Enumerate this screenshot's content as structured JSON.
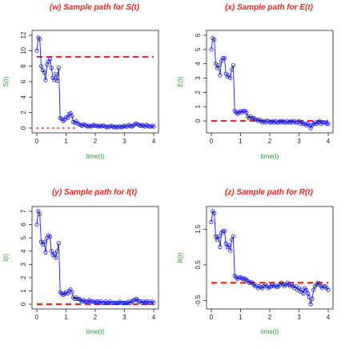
{
  "colors": {
    "title": "#e8281e",
    "axis_label": "#2a9a3a",
    "path_line": "#1a1ae6",
    "markers": "#1a1ae6",
    "reference_dashed": "#e8281e",
    "reference_dotted": "#e8281e"
  },
  "chart_data": [
    {
      "type": "line",
      "title": "(w) Sample path for S(t)",
      "xlabel": "time(t)",
      "ylabel": "S(t)",
      "xlim": [
        0,
        4
      ],
      "ylim": [
        0,
        12
      ],
      "xticks": [
        "0",
        "1",
        "2",
        "3",
        "4"
      ],
      "yticks": [
        "0",
        "2",
        "4",
        "6",
        "8",
        "10",
        "12"
      ],
      "dashed_level": {
        "y": 9.2,
        "x_range": [
          0,
          4
        ]
      },
      "dotted_level": {
        "y": 0,
        "x_range": [
          0,
          1.3
        ]
      },
      "series": [
        {
          "x": [
            0.0,
            0.05,
            0.1,
            0.15,
            0.2,
            0.25,
            0.3,
            0.35,
            0.4,
            0.45,
            0.5,
            0.55,
            0.6,
            0.65,
            0.7,
            0.75,
            0.8,
            0.85,
            0.9,
            0.95,
            1.0,
            1.05,
            1.1,
            1.15,
            1.2,
            1.25,
            1.3,
            1.35,
            1.4,
            1.45,
            1.5,
            1.55,
            1.6,
            1.65,
            1.7,
            1.75,
            1.8,
            1.85,
            1.9,
            1.95,
            2.0,
            2.05,
            2.1,
            2.15,
            2.2,
            2.25,
            2.3,
            2.35,
            2.4,
            2.45,
            2.5,
            2.55,
            2.6,
            2.65,
            2.7,
            2.75,
            2.8,
            2.85,
            2.9,
            2.95,
            3.0,
            3.05,
            3.1,
            3.15,
            3.2,
            3.25,
            3.3,
            3.35,
            3.4,
            3.45,
            3.5,
            3.55,
            3.6,
            3.65,
            3.7,
            3.75,
            3.8,
            3.85,
            3.9,
            3.95,
            4.0
          ],
          "y": [
            10.0,
            11.7,
            11.5,
            8.0,
            7.5,
            7.2,
            6.2,
            8.2,
            8.6,
            8.9,
            7.8,
            6.5,
            6.2,
            7.0,
            6.1,
            7.8,
            1.3,
            1.2,
            0.9,
            1.1,
            1.4,
            1.3,
            1.8,
            1.9,
            1.6,
            0.8,
            0.7,
            0.9,
            0.6,
            0.5,
            0.4,
            0.3,
            0.5,
            0.4,
            0.3,
            0.2,
            0.3,
            0.2,
            0.3,
            0.4,
            0.3,
            0.3,
            0.2,
            0.3,
            0.2,
            0.3,
            0.3,
            0.2,
            0.1,
            0.2,
            0.2,
            0.3,
            0.2,
            0.1,
            0.2,
            0.1,
            0.2,
            0.2,
            0.1,
            0.2,
            0.3,
            0.2,
            0.2,
            0.4,
            0.3,
            0.2,
            0.3,
            0.5,
            0.6,
            0.5,
            0.4,
            0.3,
            0.4,
            0.3,
            0.2,
            0.4,
            0.3,
            0.2,
            0.2,
            0.3,
            0.2
          ]
        }
      ]
    },
    {
      "type": "line",
      "title": "(x) Sample path for E(t)",
      "xlabel": "time(t)",
      "ylabel": "E(t)",
      "xlim": [
        0,
        4
      ],
      "ylim": [
        -0.5,
        6
      ],
      "xticks": [
        "0",
        "1",
        "2",
        "3",
        "4"
      ],
      "yticks": [
        "0",
        "1",
        "2",
        "3",
        "4",
        "5",
        "6"
      ],
      "dashed_level": {
        "y": 0,
        "x_range": [
          0,
          4
        ]
      },
      "series": [
        {
          "x": [
            0.0,
            0.05,
            0.1,
            0.15,
            0.2,
            0.25,
            0.3,
            0.35,
            0.4,
            0.45,
            0.5,
            0.55,
            0.6,
            0.65,
            0.7,
            0.75,
            0.8,
            0.85,
            0.9,
            0.95,
            1.0,
            1.05,
            1.1,
            1.15,
            1.2,
            1.25,
            1.3,
            1.35,
            1.4,
            1.45,
            1.5,
            1.55,
            1.6,
            1.65,
            1.7,
            1.75,
            1.8,
            1.85,
            1.9,
            1.95,
            2.0,
            2.05,
            2.1,
            2.15,
            2.2,
            2.25,
            2.3,
            2.35,
            2.4,
            2.45,
            2.5,
            2.55,
            2.6,
            2.65,
            2.7,
            2.75,
            2.8,
            2.85,
            2.9,
            2.95,
            3.0,
            3.05,
            3.1,
            3.15,
            3.2,
            3.25,
            3.3,
            3.35,
            3.4,
            3.45,
            3.5,
            3.55,
            3.6,
            3.65,
            3.7,
            3.75,
            3.8,
            3.85,
            3.9,
            3.95,
            4.0
          ],
          "y": [
            5.0,
            5.8,
            5.7,
            4.0,
            3.7,
            3.9,
            3.2,
            4.2,
            4.4,
            4.4,
            3.3,
            3.1,
            3.2,
            3.0,
            3.6,
            3.9,
            0.7,
            0.6,
            0.5,
            0.6,
            0.7,
            0.6,
            0.7,
            0.7,
            0.6,
            0.3,
            0.2,
            0.3,
            0.2,
            0.2,
            0.1,
            0.1,
            0.0,
            0.1,
            0.0,
            -0.1,
            0.0,
            -0.1,
            0.0,
            0.0,
            -0.1,
            -0.1,
            0.0,
            -0.1,
            0.0,
            -0.1,
            -0.1,
            0.0,
            -0.1,
            0.0,
            -0.1,
            -0.1,
            0.0,
            -0.1,
            -0.1,
            0.0,
            -0.1,
            0.0,
            -0.1,
            -0.1,
            0.0,
            -0.2,
            -0.1,
            -0.2,
            -0.2,
            -0.3,
            -0.2,
            -0.3,
            -0.5,
            -0.3,
            -0.2,
            -0.1,
            -0.2,
            -0.1,
            0.0,
            -0.2,
            -0.1,
            -0.1,
            -0.1,
            -0.2,
            -0.2
          ]
        }
      ]
    },
    {
      "type": "line",
      "title": "(y) Sample path for I(t)",
      "xlabel": "time(t)",
      "ylabel": "I(t)",
      "xlim": [
        0,
        4
      ],
      "ylim": [
        0,
        7
      ],
      "xticks": [
        "0",
        "1",
        "2",
        "3",
        "4"
      ],
      "yticks": [
        "0",
        "1",
        "2",
        "3",
        "4",
        "5",
        "6",
        "7"
      ],
      "dashed_level": {
        "y": 0,
        "x_range": [
          0,
          4
        ]
      },
      "series": [
        {
          "x": [
            0.0,
            0.05,
            0.1,
            0.15,
            0.2,
            0.25,
            0.3,
            0.35,
            0.4,
            0.45,
            0.5,
            0.55,
            0.6,
            0.65,
            0.7,
            0.75,
            0.8,
            0.85,
            0.9,
            0.95,
            1.0,
            1.05,
            1.1,
            1.15,
            1.2,
            1.25,
            1.3,
            1.35,
            1.4,
            1.45,
            1.5,
            1.55,
            1.6,
            1.65,
            1.7,
            1.75,
            1.8,
            1.85,
            1.9,
            1.95,
            2.0,
            2.05,
            2.1,
            2.15,
            2.2,
            2.25,
            2.3,
            2.35,
            2.4,
            2.45,
            2.5,
            2.55,
            2.6,
            2.65,
            2.7,
            2.75,
            2.8,
            2.85,
            2.9,
            2.95,
            3.0,
            3.05,
            3.1,
            3.15,
            3.2,
            3.25,
            3.3,
            3.35,
            3.4,
            3.45,
            3.5,
            3.55,
            3.6,
            3.65,
            3.7,
            3.75,
            3.8,
            3.85,
            3.9,
            3.95,
            4.0
          ],
          "y": [
            6.0,
            7.0,
            6.8,
            4.7,
            4.5,
            4.7,
            3.9,
            5.0,
            5.2,
            5.1,
            4.0,
            3.7,
            3.8,
            3.5,
            4.0,
            4.6,
            0.9,
            0.8,
            0.7,
            0.8,
            0.9,
            0.8,
            1.0,
            1.1,
            0.9,
            0.5,
            0.4,
            0.5,
            0.4,
            0.4,
            0.3,
            0.2,
            0.3,
            0.2,
            0.2,
            0.2,
            0.3,
            0.2,
            0.2,
            0.2,
            0.1,
            0.2,
            0.2,
            0.1,
            0.2,
            0.1,
            0.1,
            0.2,
            0.1,
            0.1,
            0.2,
            0.1,
            0.1,
            0.1,
            0.1,
            0.1,
            0.1,
            0.2,
            0.1,
            0.1,
            0.1,
            0.1,
            0.1,
            0.2,
            0.1,
            0.2,
            0.3,
            0.3,
            0.4,
            0.3,
            0.2,
            0.2,
            0.1,
            0.2,
            0.1,
            0.2,
            0.2,
            0.1,
            0.1,
            0.2,
            0.1
          ]
        }
      ]
    },
    {
      "type": "line",
      "title": "(z) Sample path for R(t)",
      "xlabel": "time(t)",
      "ylabel": "R(t)",
      "xlim": [
        0,
        4
      ],
      "ylim": [
        -0.6,
        2.0
      ],
      "xticks": [
        "0",
        "1",
        "2",
        "3",
        "4"
      ],
      "yticks": [
        "-0.5",
        "0.5",
        "1.5"
      ],
      "ytick_values": [
        -0.5,
        0.5,
        1.5
      ],
      "dashed_level": {
        "y": 0,
        "x_range": [
          0,
          4
        ]
      },
      "series": [
        {
          "x": [
            0.0,
            0.05,
            0.1,
            0.15,
            0.2,
            0.25,
            0.3,
            0.35,
            0.4,
            0.45,
            0.5,
            0.55,
            0.6,
            0.65,
            0.7,
            0.75,
            0.8,
            0.85,
            0.9,
            0.95,
            1.0,
            1.05,
            1.1,
            1.15,
            1.2,
            1.25,
            1.3,
            1.35,
            1.4,
            1.45,
            1.5,
            1.55,
            1.6,
            1.65,
            1.7,
            1.75,
            1.8,
            1.85,
            1.9,
            1.95,
            2.0,
            2.05,
            2.1,
            2.15,
            2.2,
            2.25,
            2.3,
            2.35,
            2.4,
            2.45,
            2.5,
            2.55,
            2.6,
            2.65,
            2.7,
            2.75,
            2.8,
            2.85,
            2.9,
            2.95,
            3.0,
            3.05,
            3.1,
            3.15,
            3.2,
            3.25,
            3.3,
            3.35,
            3.4,
            3.45,
            3.5,
            3.55,
            3.6,
            3.65,
            3.7,
            3.75,
            3.8,
            3.85,
            3.9,
            3.95,
            4.0
          ],
          "y": [
            1.7,
            2.0,
            1.95,
            1.3,
            1.2,
            1.3,
            1.0,
            1.4,
            1.45,
            1.45,
            1.1,
            1.0,
            1.05,
            0.9,
            1.2,
            1.3,
            0.2,
            0.15,
            0.1,
            0.15,
            0.15,
            0.12,
            0.1,
            0.12,
            0.08,
            0.05,
            0.0,
            0.02,
            0.0,
            -0.05,
            -0.1,
            -0.08,
            -0.15,
            -0.1,
            -0.12,
            -0.15,
            -0.1,
            -0.05,
            -0.1,
            -0.15,
            -0.12,
            -0.1,
            -0.05,
            -0.1,
            -0.08,
            -0.12,
            -0.1,
            -0.05,
            0.0,
            -0.05,
            -0.1,
            -0.05,
            0.0,
            -0.05,
            -0.1,
            -0.05,
            -0.1,
            -0.15,
            -0.1,
            -0.2,
            -0.15,
            -0.25,
            -0.2,
            -0.3,
            -0.15,
            -0.2,
            -0.3,
            -0.4,
            -0.6,
            -0.45,
            -0.2,
            -0.1,
            -0.05,
            0.0,
            -0.05,
            -0.1,
            -0.15,
            -0.1,
            -0.1,
            -0.15,
            -0.2
          ]
        }
      ]
    }
  ]
}
